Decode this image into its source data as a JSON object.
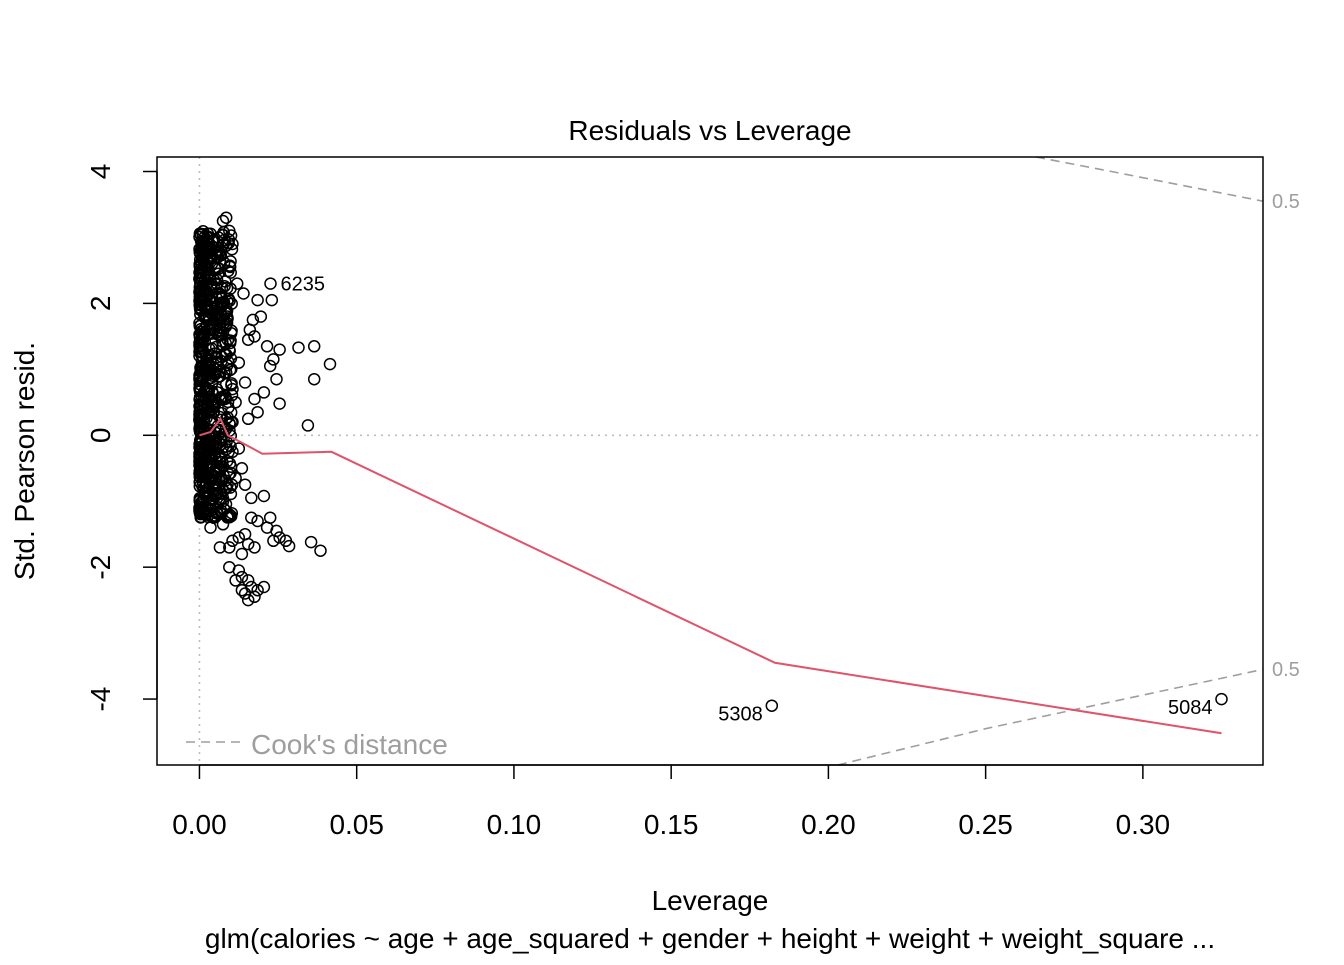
{
  "chart_data": {
    "type": "scatter",
    "title": "Residuals vs Leverage",
    "xlabel": "Leverage",
    "ylabel": "Std. Pearson resid.",
    "subtitle": "glm(calories ~ age + age_squared + gender + height + weight + weight_square ...",
    "xlim": [
      -0.0135,
      0.3382
    ],
    "ylim": [
      -5.0,
      4.22
    ],
    "x_ticks": [
      "0.00",
      "0.05",
      "0.10",
      "0.15",
      "0.20",
      "0.25",
      "0.30"
    ],
    "x_tick_values": [
      0.0,
      0.05,
      0.1,
      0.15,
      0.2,
      0.25,
      0.3
    ],
    "y_ticks": [
      "-4",
      "-2",
      "0",
      "2",
      "4"
    ],
    "y_tick_values": [
      -4,
      -2,
      0,
      2,
      4
    ],
    "legend": {
      "label": "Cook's distance",
      "position": "bottom-left"
    },
    "cook_contour_labels": [
      "0.5",
      "0.5"
    ],
    "reference_lines": {
      "h": 0,
      "v": 0
    },
    "labeled_points": [
      {
        "id": "6235",
        "x": 0.0226,
        "y": 2.3
      },
      {
        "id": "5308",
        "x": 0.182,
        "y": -4.1
      },
      {
        "id": "5084",
        "x": 0.325,
        "y": -4.0
      }
    ],
    "smoother": {
      "name": "smoother",
      "x": [
        0.0,
        0.0035,
        0.0067,
        0.009,
        0.015,
        0.02,
        0.042,
        0.183,
        0.325
      ],
      "y": [
        0.0,
        0.05,
        0.25,
        0.0,
        -0.15,
        -0.28,
        -0.25,
        -3.45,
        -4.52
      ]
    },
    "cooks_contour": {
      "upper": {
        "x": [
          0.266,
          0.29,
          0.3382
        ],
        "y": [
          4.22,
          4.0,
          3.55
        ]
      },
      "lower": {
        "x": [
          0.203,
          0.25,
          0.3382
        ],
        "y": [
          -5.0,
          -4.45,
          -3.55
        ]
      }
    },
    "points": [
      {
        "x": 0.0226,
        "y": 2.3
      },
      {
        "x": 0.182,
        "y": -4.1
      },
      {
        "x": 0.325,
        "y": -4.0
      },
      {
        "x": 0.0085,
        "y": 3.3
      },
      {
        "x": 0.0075,
        "y": 3.25
      },
      {
        "x": 0.0095,
        "y": 3.1
      },
      {
        "x": 0.0105,
        "y": 2.9
      },
      {
        "x": 0.0025,
        "y": 3.0
      },
      {
        "x": 0.004,
        "y": 2.6
      },
      {
        "x": 0.006,
        "y": 2.45
      },
      {
        "x": 0.0065,
        "y": 2.1
      },
      {
        "x": 0.012,
        "y": 2.3
      },
      {
        "x": 0.014,
        "y": 2.15
      },
      {
        "x": 0.0185,
        "y": 2.05
      },
      {
        "x": 0.023,
        "y": 2.05
      },
      {
        "x": 0.017,
        "y": 1.75
      },
      {
        "x": 0.0195,
        "y": 1.8
      },
      {
        "x": 0.016,
        "y": 1.6
      },
      {
        "x": 0.0155,
        "y": 1.45
      },
      {
        "x": 0.0175,
        "y": 1.5
      },
      {
        "x": 0.0215,
        "y": 1.35
      },
      {
        "x": 0.0235,
        "y": 1.15
      },
      {
        "x": 0.0255,
        "y": 1.3
      },
      {
        "x": 0.0315,
        "y": 1.33
      },
      {
        "x": 0.0365,
        "y": 1.35
      },
      {
        "x": 0.0415,
        "y": 1.08
      },
      {
        "x": 0.0365,
        "y": 0.85
      },
      {
        "x": 0.0245,
        "y": 0.85
      },
      {
        "x": 0.0225,
        "y": 1.05
      },
      {
        "x": 0.0205,
        "y": 0.65
      },
      {
        "x": 0.0175,
        "y": 0.55
      },
      {
        "x": 0.0145,
        "y": 0.8
      },
      {
        "x": 0.0125,
        "y": 1.1
      },
      {
        "x": 0.0095,
        "y": 1.3
      },
      {
        "x": 0.0255,
        "y": 0.48
      },
      {
        "x": 0.0185,
        "y": 0.35
      },
      {
        "x": 0.0155,
        "y": 0.25
      },
      {
        "x": 0.0115,
        "y": 0.5
      },
      {
        "x": 0.0345,
        "y": 0.15
      },
      {
        "x": 0.0105,
        "y": 0.2
      },
      {
        "x": 0.0125,
        "y": -0.2
      },
      {
        "x": 0.0135,
        "y": -0.5
      },
      {
        "x": 0.0115,
        "y": -0.65
      },
      {
        "x": 0.0145,
        "y": -0.75
      },
      {
        "x": 0.0165,
        "y": -0.95
      },
      {
        "x": 0.0205,
        "y": -0.92
      },
      {
        "x": 0.0225,
        "y": -1.25
      },
      {
        "x": 0.0245,
        "y": -1.45
      },
      {
        "x": 0.0215,
        "y": -1.4
      },
      {
        "x": 0.0185,
        "y": -1.3
      },
      {
        "x": 0.0165,
        "y": -1.25
      },
      {
        "x": 0.0145,
        "y": -1.5
      },
      {
        "x": 0.0125,
        "y": -1.55
      },
      {
        "x": 0.0105,
        "y": -1.6
      },
      {
        "x": 0.0095,
        "y": -1.7
      },
      {
        "x": 0.0135,
        "y": -1.8
      },
      {
        "x": 0.0155,
        "y": -1.65
      },
      {
        "x": 0.0175,
        "y": -1.7
      },
      {
        "x": 0.0235,
        "y": -1.6
      },
      {
        "x": 0.0255,
        "y": -1.55
      },
      {
        "x": 0.0275,
        "y": -1.6
      },
      {
        "x": 0.0285,
        "y": -1.68
      },
      {
        "x": 0.0355,
        "y": -1.62
      },
      {
        "x": 0.0385,
        "y": -1.75
      },
      {
        "x": 0.0095,
        "y": -2.0
      },
      {
        "x": 0.0125,
        "y": -2.05
      },
      {
        "x": 0.0115,
        "y": -2.2
      },
      {
        "x": 0.0135,
        "y": -2.15
      },
      {
        "x": 0.0155,
        "y": -2.2
      },
      {
        "x": 0.0135,
        "y": -2.35
      },
      {
        "x": 0.0145,
        "y": -2.4
      },
      {
        "x": 0.0165,
        "y": -2.3
      },
      {
        "x": 0.0185,
        "y": -2.35
      },
      {
        "x": 0.0205,
        "y": -2.3
      },
      {
        "x": 0.0175,
        "y": -2.45
      },
      {
        "x": 0.0155,
        "y": -2.5
      },
      {
        "x": 0.0095,
        "y": -1.2
      },
      {
        "x": 0.0075,
        "y": -1.35
      },
      {
        "x": 0.0045,
        "y": -1.25
      },
      {
        "x": 0.0025,
        "y": -1.1
      },
      {
        "x": 0.0055,
        "y": -0.9
      },
      {
        "x": 0.0085,
        "y": -0.8
      },
      {
        "x": 0.0065,
        "y": -0.4
      },
      {
        "x": 0.0035,
        "y": -0.3
      },
      {
        "x": 0.0015,
        "y": -0.6
      },
      {
        "x": 0.0045,
        "y": 0.35
      },
      {
        "x": 0.0025,
        "y": 0.7
      },
      {
        "x": 0.0055,
        "y": 1.0
      },
      {
        "x": 0.0035,
        "y": 1.6
      },
      {
        "x": 0.0015,
        "y": 2.2
      },
      {
        "x": 0.0045,
        "y": 2.85
      },
      {
        "x": 0.0015,
        "y": 2.6
      },
      {
        "x": 0.0055,
        "y": 1.85
      },
      {
        "x": 0.0075,
        "y": 1.55
      },
      {
        "x": 0.0085,
        "y": 0.95
      },
      {
        "x": 0.0105,
        "y": 0.7
      },
      {
        "x": 0.0085,
        "y": 0.1
      },
      {
        "x": 0.0105,
        "y": -0.25
      },
      {
        "x": 0.0075,
        "y": -1.0
      },
      {
        "x": 0.0035,
        "y": -1.4
      },
      {
        "x": 0.0065,
        "y": -1.7
      }
    ]
  }
}
